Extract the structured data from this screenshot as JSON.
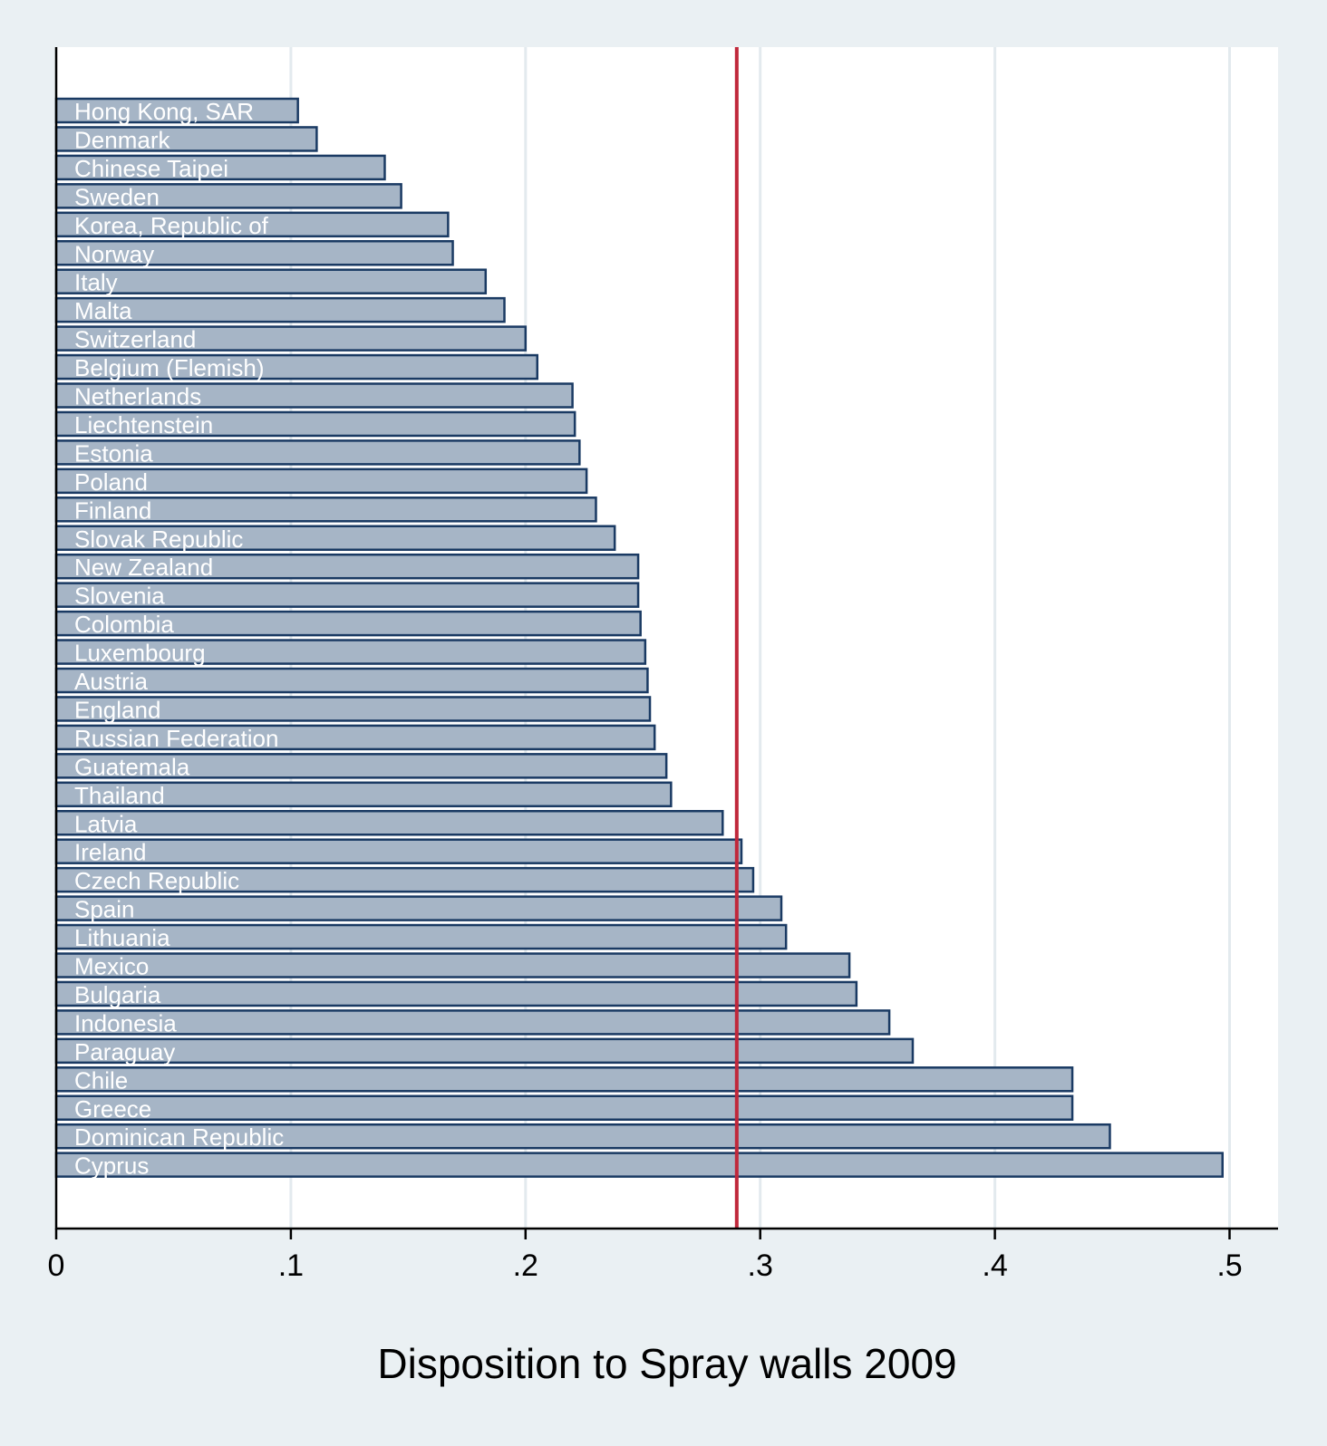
{
  "chart_data": {
    "type": "bar",
    "orientation": "horizontal",
    "xlabel": "Disposition to Spray walls 2009",
    "xlim": [
      0,
      0.52
    ],
    "xticks": [
      0,
      0.1,
      0.2,
      0.3,
      0.4,
      0.5
    ],
    "xtick_labels": [
      "0",
      ".1",
      ".2",
      ".3",
      ".4",
      ".5"
    ],
    "grid": true,
    "reference_line": {
      "x": 0.29
    },
    "categories": [
      "Hong Kong, SAR",
      "Denmark",
      "Chinese Taipei",
      "Sweden",
      "Korea, Republic of",
      "Norway",
      "Italy",
      "Malta",
      "Switzerland",
      "Belgium (Flemish)",
      "Netherlands",
      "Liechtenstein",
      "Estonia",
      "Poland",
      "Finland",
      "Slovak Republic",
      "New Zealand",
      "Slovenia",
      "Colombia",
      "Luxembourg",
      "Austria",
      "England",
      "Russian Federation",
      "Guatemala",
      "Thailand",
      "Latvia",
      "Ireland",
      "Czech Republic",
      "Spain",
      "Lithuania",
      "Mexico",
      "Bulgaria",
      "Indonesia",
      "Paraguay",
      "Chile",
      "Greece",
      "Dominican Republic",
      "Cyprus"
    ],
    "values": [
      0.103,
      0.111,
      0.14,
      0.147,
      0.167,
      0.169,
      0.183,
      0.191,
      0.2,
      0.205,
      0.22,
      0.221,
      0.223,
      0.226,
      0.23,
      0.238,
      0.248,
      0.248,
      0.249,
      0.251,
      0.252,
      0.253,
      0.255,
      0.26,
      0.262,
      0.284,
      0.292,
      0.297,
      0.309,
      0.311,
      0.338,
      0.341,
      0.355,
      0.365,
      0.433,
      0.433,
      0.449,
      0.497
    ]
  },
  "colors": {
    "background": "#eaf0f3",
    "plot_background": "#ffffff",
    "bar_fill": "#a6b5c6",
    "bar_stroke": "#1a3a63",
    "grid": "#e3eaee",
    "reference_line": "#c0283b",
    "axis": "#000000"
  }
}
